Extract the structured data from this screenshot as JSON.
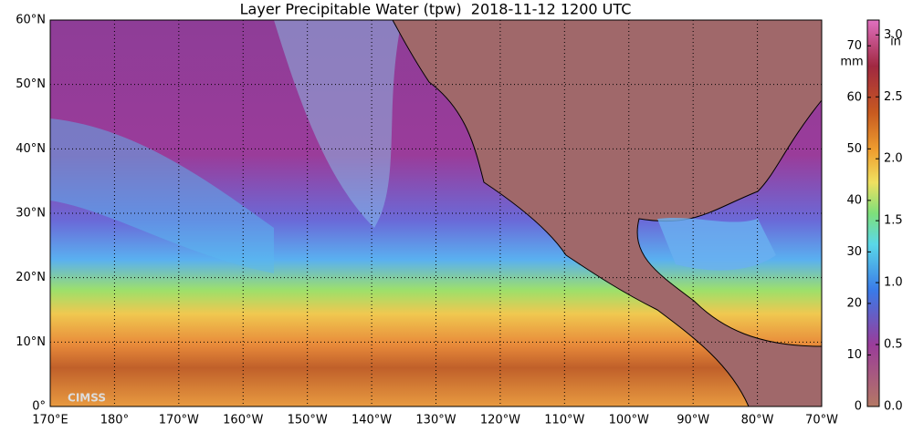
{
  "title": "Layer Precipitable Water (tpw)  2018-11-12 1200 UTC",
  "map": {
    "lat_labels": [
      "0°",
      "10°N",
      "20°N",
      "30°N",
      "40°N",
      "50°N",
      "60°N"
    ],
    "lon_labels": [
      "170°E",
      "180°",
      "170°W",
      "160°W",
      "150°W",
      "140°W",
      "130°W",
      "120°W",
      "110°W",
      "100°W",
      "90°W",
      "80°W",
      "70°W"
    ]
  },
  "colorbar": {
    "mm_unit": "mm",
    "in_unit": "in",
    "mm_range": [
      0,
      75
    ],
    "mm_ticks": [
      0,
      10,
      20,
      30,
      40,
      50,
      60,
      70
    ],
    "in_range": [
      0,
      3.12
    ],
    "in_ticks": [
      {
        "value": 0,
        "label": "0.0"
      },
      {
        "value": 0.5,
        "label": "0.5"
      },
      {
        "value": 1,
        "label": "1.0"
      },
      {
        "value": 1.5,
        "label": "1.5"
      },
      {
        "value": 2,
        "label": "2.0"
      },
      {
        "value": 2.5,
        "label": "2.5"
      },
      {
        "value": 3,
        "label": "3.0"
      }
    ]
  },
  "logo": "CIMSS"
}
